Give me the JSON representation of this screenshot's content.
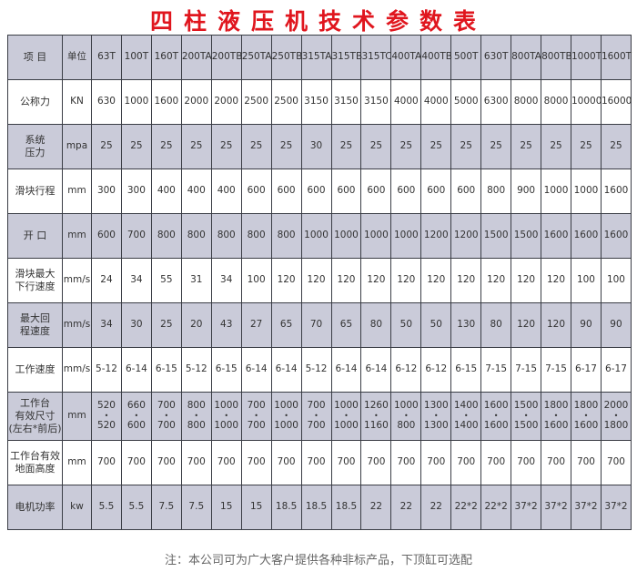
{
  "title": "四柱液压机技术参数表",
  "header": {
    "item": "项  目",
    "unit": "单位",
    "models": [
      "63T",
      "100T",
      "160T",
      "200TA",
      "200TB",
      "250TA",
      "250TB",
      "315TA",
      "315TB",
      "315TC",
      "400TA",
      "400TB",
      "500T",
      "630T",
      "800TA",
      "800TB",
      "1000T",
      "1600T"
    ]
  },
  "rows": [
    {
      "label": "公称力",
      "unit": "KN",
      "values": [
        "630",
        "1000",
        "1600",
        "2000",
        "2000",
        "2500",
        "2500",
        "3150",
        "3150",
        "3150",
        "4000",
        "4000",
        "5000",
        "6300",
        "8000",
        "8000",
        "10000",
        "16000"
      ]
    },
    {
      "label": "系统\n压力",
      "unit": "mpa",
      "values": [
        "25",
        "25",
        "25",
        "25",
        "25",
        "25",
        "25",
        "30",
        "25",
        "25",
        "25",
        "25",
        "25",
        "25",
        "25",
        "25",
        "25",
        "25"
      ]
    },
    {
      "label": "滑块行程",
      "unit": "mm",
      "values": [
        "300",
        "300",
        "400",
        "400",
        "400",
        "600",
        "600",
        "600",
        "600",
        "600",
        "600",
        "600",
        "600",
        "800",
        "900",
        "1000",
        "1000",
        "1600"
      ]
    },
    {
      "label": "开  口",
      "unit": "mm",
      "values": [
        "600",
        "700",
        "800",
        "800",
        "800",
        "800",
        "800",
        "1000",
        "1000",
        "1000",
        "1000",
        "1200",
        "1200",
        "1500",
        "1500",
        "1600",
        "1600",
        "1600"
      ]
    },
    {
      "label": "滑块最大\n下行速度",
      "unit": "mm/s",
      "values": [
        "24",
        "34",
        "55",
        "31",
        "34",
        "100",
        "120",
        "120",
        "120",
        "120",
        "120",
        "120",
        "120",
        "120",
        "120",
        "120",
        "100",
        "100"
      ]
    },
    {
      "label": "最大回\n程速度",
      "unit": "mm/s",
      "values": [
        "34",
        "30",
        "25",
        "20",
        "43",
        "27",
        "65",
        "70",
        "65",
        "80",
        "50",
        "50",
        "130",
        "80",
        "120",
        "120",
        "90",
        "90"
      ]
    },
    {
      "label": "工作速度",
      "unit": "mm/s",
      "values": [
        "5-12",
        "6-14",
        "6-15",
        "5-12",
        "6-15",
        "6-14",
        "6-14",
        "5-12",
        "6-14",
        "6-14",
        "6-12",
        "6-12",
        "6-15",
        "7-15",
        "7-15",
        "7-15",
        "6-17",
        "6-17"
      ]
    },
    {
      "label": "工作台\n有效尺寸\n(左右*前后)",
      "unit": "mm",
      "dims": true,
      "values": [
        [
          "520",
          "520"
        ],
        [
          "660",
          "600"
        ],
        [
          "700",
          "700"
        ],
        [
          "800",
          "800"
        ],
        [
          "1000",
          "1000"
        ],
        [
          "700",
          "700"
        ],
        [
          "1000",
          "1000"
        ],
        [
          "700",
          "700"
        ],
        [
          "1000",
          "1000"
        ],
        [
          "1260",
          "1160"
        ],
        [
          "1000",
          "800"
        ],
        [
          "1300",
          "1300"
        ],
        [
          "1400",
          "1400"
        ],
        [
          "1600",
          "1600"
        ],
        [
          "1500",
          "1500"
        ],
        [
          "1800",
          "1600"
        ],
        [
          "1800",
          "1600"
        ],
        [
          "2000",
          "1800"
        ]
      ]
    },
    {
      "label": "工作台有效\n地面高度",
      "unit": "mm",
      "values": [
        "700",
        "700",
        "700",
        "700",
        "700",
        "700",
        "700",
        "700",
        "700",
        "700",
        "700",
        "700",
        "700",
        "700",
        "700",
        "700",
        "700",
        "700"
      ]
    },
    {
      "label": "电机功率",
      "unit": "kw",
      "values": [
        "5.5",
        "5.5",
        "7.5",
        "7.5",
        "15",
        "15",
        "18.5",
        "18.5",
        "18.5",
        "22",
        "22",
        "22",
        "22*2",
        "22*2",
        "37*2",
        "37*2",
        "37*2",
        "37*2"
      ]
    }
  ],
  "note": "注：本公司可为广大客户提供各种非标产品，下顶缸可选配"
}
